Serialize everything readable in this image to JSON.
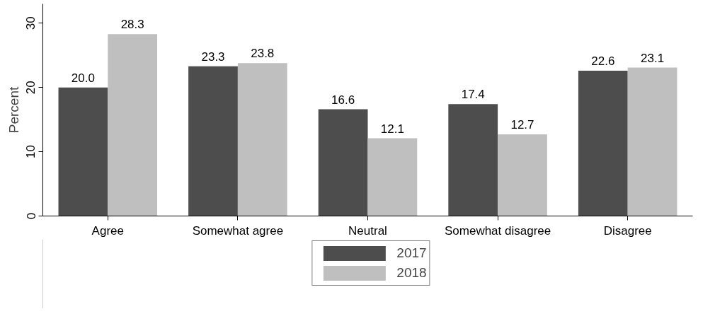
{
  "chart_data": {
    "type": "bar",
    "ylabel": "Percent",
    "categories": [
      "Agree",
      "Somewhat agree",
      "Neutral",
      "Somewhat disagree",
      "Disagree"
    ],
    "series": [
      {
        "name": "2017",
        "color": "#4d4d4d",
        "values": [
          20.0,
          23.3,
          16.6,
          17.4,
          22.6
        ],
        "value_labels": [
          "20.0",
          "23.3",
          "16.6",
          "17.4",
          "22.6"
        ]
      },
      {
        "name": "2018",
        "color": "#bfbfbf",
        "values": [
          28.3,
          23.8,
          12.1,
          12.7,
          23.1
        ],
        "value_labels": [
          "28.3",
          "23.8",
          "12.1",
          "12.7",
          "23.1"
        ]
      }
    ],
    "ylim": [
      0,
      33
    ],
    "yticks": [
      0,
      10,
      20,
      30
    ],
    "grid": false,
    "legend": "bottom"
  }
}
